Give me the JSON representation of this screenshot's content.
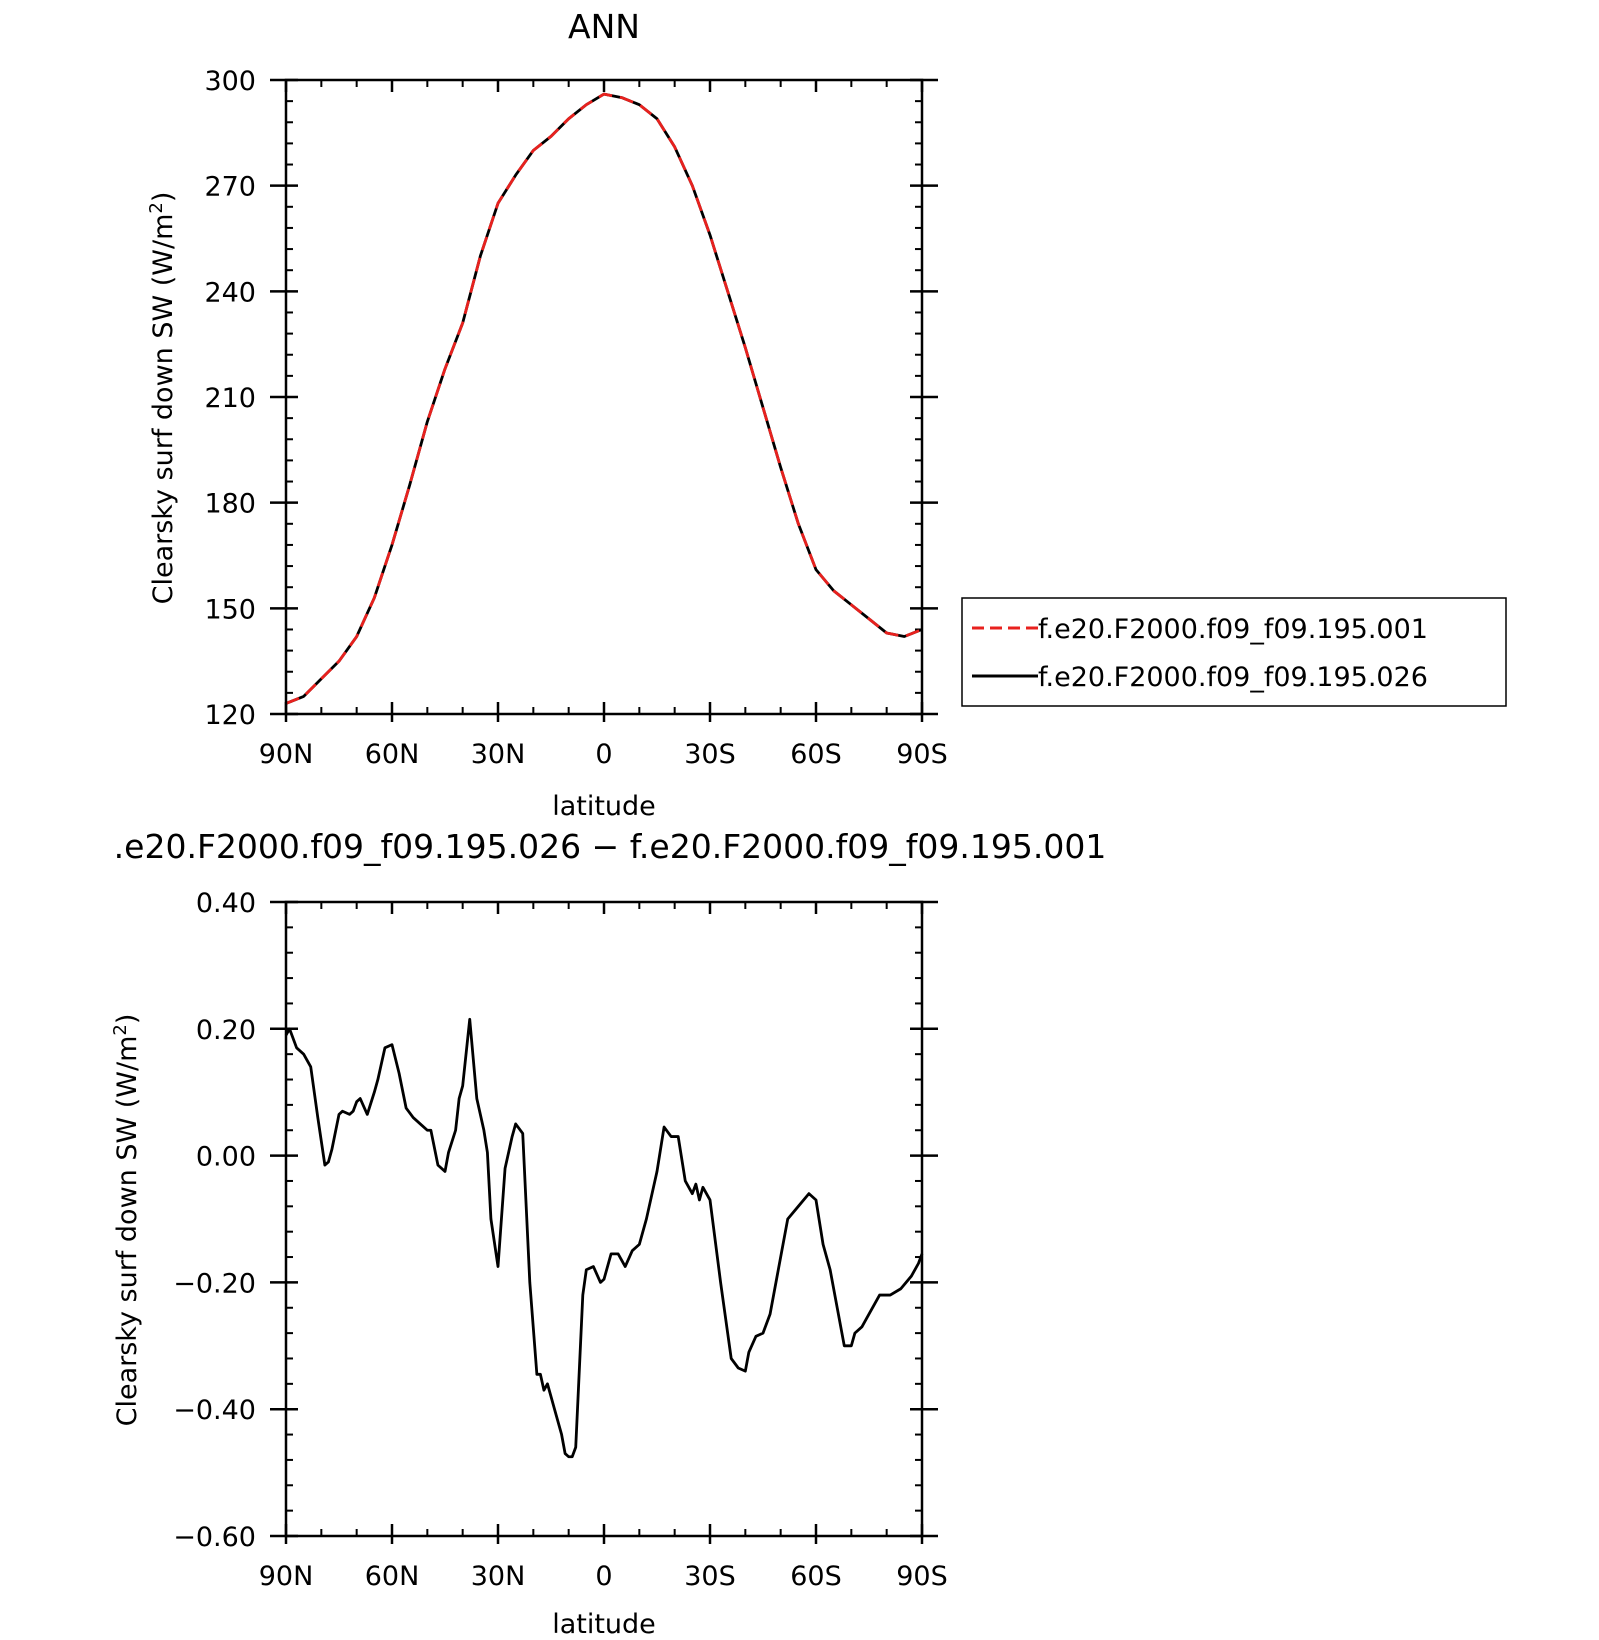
{
  "chart_data": [
    {
      "type": "line",
      "title": "ANN",
      "xlabel": "latitude",
      "ylabel": "Clearsky surf down SW (W/m",
      "ylabel_sup": "2",
      "ylabel_close": ")",
      "xlim": [
        90,
        -90
      ],
      "ylim": [
        120,
        300
      ],
      "x_tick_values": [
        90,
        60,
        30,
        0,
        -30,
        -60,
        -90
      ],
      "x_tick_labels": [
        "90N",
        "60N",
        "30N",
        "0",
        "30S",
        "60S",
        "90S"
      ],
      "y_tick_values": [
        120,
        150,
        180,
        210,
        240,
        270,
        300
      ],
      "y_tick_labels": [
        "120",
        "150",
        "180",
        "210",
        "240",
        "270",
        "300"
      ],
      "legend_position": "right",
      "series": [
        {
          "name": "f.e20.F2000.f09_f09.195.001",
          "color": "#e8211e",
          "style": "dashed",
          "x": [
            90,
            85,
            80,
            75,
            70,
            65,
            60,
            55,
            50,
            45,
            40,
            35,
            30,
            25,
            20,
            15,
            10,
            5,
            0,
            -5,
            -10,
            -15,
            -20,
            -25,
            -30,
            -35,
            -40,
            -45,
            -50,
            -55,
            -60,
            -65,
            -70,
            -75,
            -80,
            -85,
            -90
          ],
          "values": [
            123,
            125,
            130,
            135,
            142,
            153,
            168,
            185,
            203,
            218,
            231,
            250,
            265,
            273,
            280,
            284,
            289,
            293,
            296,
            295,
            293,
            289,
            281,
            270,
            256,
            240,
            224,
            207,
            190,
            174,
            161,
            155,
            151,
            147,
            143,
            142,
            144
          ]
        },
        {
          "name": "f.e20.F2000.f09_f09.195.026",
          "color": "#000000",
          "style": "solid",
          "x": [
            90,
            85,
            80,
            75,
            70,
            65,
            60,
            55,
            50,
            45,
            40,
            35,
            30,
            25,
            20,
            15,
            10,
            5,
            0,
            -5,
            -10,
            -15,
            -20,
            -25,
            -30,
            -35,
            -40,
            -45,
            -50,
            -55,
            -60,
            -65,
            -70,
            -75,
            -80,
            -85,
            -90
          ],
          "values": [
            123,
            125,
            130,
            135,
            142,
            153,
            168,
            185,
            203,
            218,
            231,
            250,
            265,
            273,
            280,
            284,
            289,
            293,
            296,
            295,
            293,
            289,
            281,
            270,
            256,
            240,
            224,
            207,
            190,
            174,
            161,
            155,
            151,
            147,
            143,
            142,
            144
          ]
        }
      ]
    },
    {
      "type": "line",
      "title": ".e20.F2000.f09_f09.195.026 − f.e20.F2000.f09_f09.195.001",
      "xlabel": "latitude",
      "ylabel": "Clearsky surf down SW (W/m",
      "ylabel_sup": "2",
      "ylabel_close": ")",
      "xlim": [
        90,
        -90
      ],
      "ylim": [
        -0.6,
        0.4
      ],
      "x_tick_values": [
        90,
        60,
        30,
        0,
        -30,
        -60,
        -90
      ],
      "x_tick_labels": [
        "90N",
        "60N",
        "30N",
        "0",
        "30S",
        "60S",
        "90S"
      ],
      "y_tick_values": [
        -0.6,
        -0.4,
        -0.2,
        0.0,
        0.2,
        0.4
      ],
      "y_tick_labels": [
        "−0.60",
        "−0.40",
        "−0.20",
        "0.00",
        "0.20",
        "0.40"
      ],
      "series": [
        {
          "name": "",
          "color": "#000000",
          "style": "solid",
          "x": [
            90,
            89,
            87,
            85,
            83,
            81,
            79,
            78,
            77,
            75,
            74,
            72,
            71,
            70,
            69,
            67,
            65,
            64,
            62,
            60,
            58,
            56,
            54,
            52,
            50,
            49,
            47,
            45,
            44,
            42,
            41,
            40,
            38,
            36,
            34,
            33,
            32,
            30,
            28,
            26,
            25,
            23,
            21,
            19,
            18,
            17,
            16,
            14,
            12,
            11,
            10,
            9,
            8,
            6,
            5,
            3,
            1,
            0,
            -2,
            -4,
            -6,
            -8,
            -10,
            -12,
            -15,
            -17,
            -19,
            -21,
            -23,
            -25,
            -26,
            -27,
            -28,
            -30,
            -33,
            -36,
            -38,
            -40,
            -41,
            -43,
            -45,
            -47,
            -49,
            -52,
            -55,
            -58,
            -60,
            -62,
            -64,
            -66,
            -68,
            -70,
            -71,
            -73,
            -75,
            -78,
            -81,
            -84,
            -87,
            -89,
            -90
          ],
          "values": [
            0.19,
            0.2,
            0.17,
            0.16,
            0.14,
            0.06,
            -0.015,
            -0.01,
            0.01,
            0.065,
            0.07,
            0.065,
            0.07,
            0.085,
            0.09,
            0.065,
            0.1,
            0.12,
            0.17,
            0.175,
            0.13,
            0.075,
            0.06,
            0.05,
            0.04,
            0.04,
            -0.015,
            -0.025,
            0.005,
            0.04,
            0.09,
            0.11,
            0.215,
            0.09,
            0.04,
            0.005,
            -0.1,
            -0.175,
            -0.02,
            0.03,
            0.05,
            0.035,
            -0.2,
            -0.345,
            -0.345,
            -0.37,
            -0.36,
            -0.4,
            -0.44,
            -0.47,
            -0.475,
            -0.475,
            -0.46,
            -0.22,
            -0.18,
            -0.175,
            -0.2,
            -0.195,
            -0.155,
            -0.155,
            -0.175,
            -0.15,
            -0.14,
            -0.1,
            -0.025,
            0.045,
            0.03,
            0.03,
            -0.04,
            -0.06,
            -0.045,
            -0.07,
            -0.05,
            -0.07,
            -0.2,
            -0.32,
            -0.335,
            -0.34,
            -0.31,
            -0.285,
            -0.28,
            -0.25,
            -0.19,
            -0.1,
            -0.08,
            -0.06,
            -0.07,
            -0.14,
            -0.18,
            -0.24,
            -0.3,
            -0.3,
            -0.28,
            -0.27,
            -0.25,
            -0.22,
            -0.22,
            -0.21,
            -0.19,
            -0.17,
            -0.155
          ]
        }
      ]
    }
  ]
}
